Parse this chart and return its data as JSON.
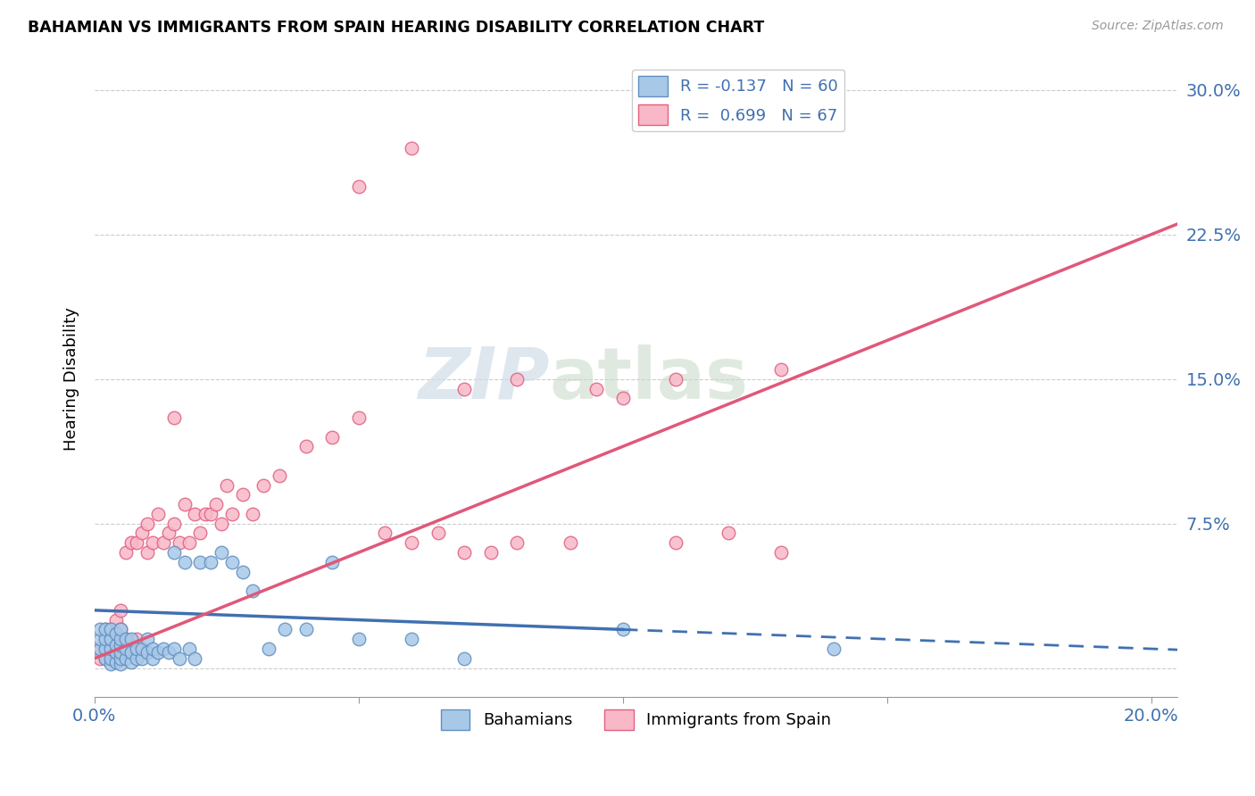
{
  "title": "BAHAMIAN VS IMMIGRANTS FROM SPAIN HEARING DISABILITY CORRELATION CHART",
  "source": "Source: ZipAtlas.com",
  "ylabel": "Hearing Disability",
  "yticks": [
    0.0,
    0.075,
    0.15,
    0.225,
    0.3
  ],
  "ytick_labels": [
    "",
    "7.5%",
    "15.0%",
    "22.5%",
    "30.0%"
  ],
  "xrange": [
    0.0,
    0.205
  ],
  "yrange": [
    -0.015,
    0.315
  ],
  "legend_blue_label": "R = -0.137   N = 60",
  "legend_pink_label": "R =  0.699   N = 67",
  "bottom_legend_blue": "Bahamians",
  "bottom_legend_pink": "Immigrants from Spain",
  "blue_fill_color": "#a8c8e8",
  "pink_fill_color": "#f9b8c8",
  "blue_edge_color": "#6090c0",
  "pink_edge_color": "#e06080",
  "blue_line_color": "#4070b0",
  "pink_line_color": "#e05878",
  "watermark_zip": "ZIP",
  "watermark_atlas": "atlas",
  "blue_scatter_x": [
    0.001,
    0.001,
    0.001,
    0.002,
    0.002,
    0.002,
    0.002,
    0.003,
    0.003,
    0.003,
    0.003,
    0.003,
    0.004,
    0.004,
    0.004,
    0.004,
    0.005,
    0.005,
    0.005,
    0.005,
    0.005,
    0.005,
    0.006,
    0.006,
    0.006,
    0.007,
    0.007,
    0.007,
    0.008,
    0.008,
    0.009,
    0.009,
    0.01,
    0.01,
    0.011,
    0.011,
    0.012,
    0.013,
    0.014,
    0.015,
    0.015,
    0.016,
    0.017,
    0.018,
    0.019,
    0.02,
    0.022,
    0.024,
    0.026,
    0.028,
    0.03,
    0.033,
    0.036,
    0.04,
    0.045,
    0.05,
    0.06,
    0.07,
    0.1,
    0.14
  ],
  "blue_scatter_y": [
    0.01,
    0.015,
    0.02,
    0.005,
    0.01,
    0.015,
    0.02,
    0.002,
    0.005,
    0.01,
    0.015,
    0.02,
    0.003,
    0.008,
    0.012,
    0.018,
    0.002,
    0.005,
    0.008,
    0.012,
    0.015,
    0.02,
    0.005,
    0.01,
    0.015,
    0.003,
    0.008,
    0.015,
    0.005,
    0.01,
    0.005,
    0.01,
    0.008,
    0.015,
    0.005,
    0.01,
    0.008,
    0.01,
    0.008,
    0.01,
    0.06,
    0.005,
    0.055,
    0.01,
    0.005,
    0.055,
    0.055,
    0.06,
    0.055,
    0.05,
    0.04,
    0.01,
    0.02,
    0.02,
    0.055,
    0.015,
    0.015,
    0.005,
    0.02,
    0.01
  ],
  "pink_scatter_x": [
    0.001,
    0.001,
    0.002,
    0.002,
    0.002,
    0.003,
    0.003,
    0.003,
    0.004,
    0.004,
    0.004,
    0.005,
    0.005,
    0.005,
    0.005,
    0.006,
    0.006,
    0.007,
    0.007,
    0.008,
    0.008,
    0.009,
    0.009,
    0.01,
    0.01,
    0.011,
    0.012,
    0.013,
    0.014,
    0.015,
    0.015,
    0.016,
    0.017,
    0.018,
    0.019,
    0.02,
    0.021,
    0.022,
    0.023,
    0.024,
    0.025,
    0.026,
    0.028,
    0.03,
    0.032,
    0.035,
    0.04,
    0.045,
    0.05,
    0.055,
    0.06,
    0.065,
    0.07,
    0.075,
    0.08,
    0.09,
    0.1,
    0.11,
    0.12,
    0.13,
    0.05,
    0.06,
    0.07,
    0.095,
    0.08,
    0.11,
    0.13
  ],
  "pink_scatter_y": [
    0.005,
    0.01,
    0.005,
    0.01,
    0.02,
    0.005,
    0.01,
    0.02,
    0.005,
    0.015,
    0.025,
    0.005,
    0.01,
    0.02,
    0.03,
    0.015,
    0.06,
    0.01,
    0.065,
    0.015,
    0.065,
    0.01,
    0.07,
    0.06,
    0.075,
    0.065,
    0.08,
    0.065,
    0.07,
    0.075,
    0.13,
    0.065,
    0.085,
    0.065,
    0.08,
    0.07,
    0.08,
    0.08,
    0.085,
    0.075,
    0.095,
    0.08,
    0.09,
    0.08,
    0.095,
    0.1,
    0.115,
    0.12,
    0.13,
    0.07,
    0.065,
    0.07,
    0.06,
    0.06,
    0.065,
    0.065,
    0.14,
    0.065,
    0.07,
    0.06,
    0.25,
    0.27,
    0.145,
    0.145,
    0.15,
    0.15,
    0.155
  ],
  "blue_line_x": [
    0.0,
    0.205
  ],
  "blue_line_y_intercept": 0.03,
  "blue_line_slope": -0.1,
  "pink_line_x": [
    0.0,
    0.205
  ],
  "pink_line_y_intercept": 0.005,
  "pink_line_slope": 1.1
}
